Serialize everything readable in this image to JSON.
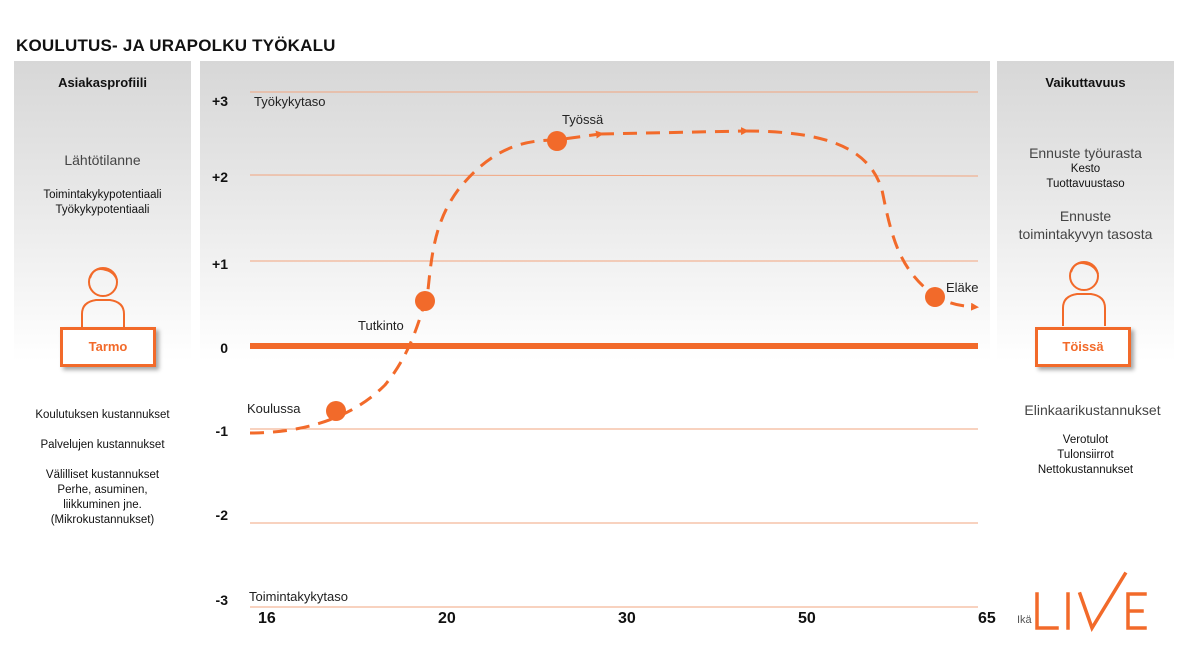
{
  "title": "KOULUTUS- JA URAPOLKU TYÖKALU",
  "left_panel": {
    "heading": "Asiakasprofiili",
    "subheading": "Lähtötilanne",
    "potentials": [
      "Toimintakykypotentiaali",
      "Työkykypotentiaali"
    ],
    "person_name": "Tarmo",
    "costs": [
      "Koulutuksen kustannukset",
      "Palvelujen kustannukset",
      "Välilliset kustannukset",
      "Perhe, asuminen,",
      "liikkuminen jne.",
      "(Mikrokustannukset)"
    ]
  },
  "right_panel": {
    "heading": "Vaikuttavuus",
    "forecast1_title": "Ennuste työurasta",
    "forecast1_items": [
      "Kesto",
      "Tuottavuustaso"
    ],
    "forecast2_title_line1": "Ennuste",
    "forecast2_title_line2": "toimintakyvyn tasosta",
    "person_name": "Töissä",
    "lifecycle_title": "Elinkaarikustannukset",
    "lifecycle_items": [
      "Verotulot",
      "Tulonsiirrot",
      "Nettokustannukset"
    ]
  },
  "chart": {
    "y_ticks": [
      "+3",
      "+2",
      "+1",
      "0",
      "-1",
      "-2",
      "-3"
    ],
    "x_ticks": [
      "16",
      "20",
      "30",
      "50",
      "65"
    ],
    "top_label": "Työkykytaso",
    "bottom_label": "Toimintakykytaso",
    "x_axis_label": "Ikä",
    "stages": [
      "Koulussa",
      "Tutkinto",
      "Työssä",
      "Eläke"
    ]
  },
  "logo": "LIVE",
  "colors": {
    "accent": "#f26a2a",
    "panel_gray": "#d7d7d7"
  }
}
